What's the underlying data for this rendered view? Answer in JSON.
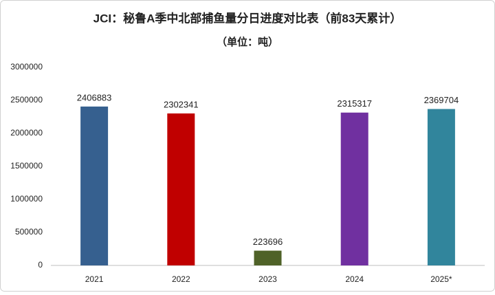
{
  "chart_data": {
    "type": "bar",
    "title": "JCI：秘鲁A季中北部捕鱼量分日进度对比表（前83天累计）",
    "subtitle": "（单位：吨）",
    "categories": [
      "2021",
      "2022",
      "2023",
      "2024",
      "2025*"
    ],
    "values": [
      2406883,
      2302341,
      223696,
      2315317,
      2369704
    ],
    "colors": [
      "#36608f",
      "#c00000",
      "#4f6228",
      "#7030a0",
      "#31859c"
    ],
    "ylim": [
      0,
      3000000
    ],
    "yticks": [
      0,
      500000,
      1000000,
      1500000,
      2000000,
      2500000,
      3000000
    ],
    "grid": false
  }
}
